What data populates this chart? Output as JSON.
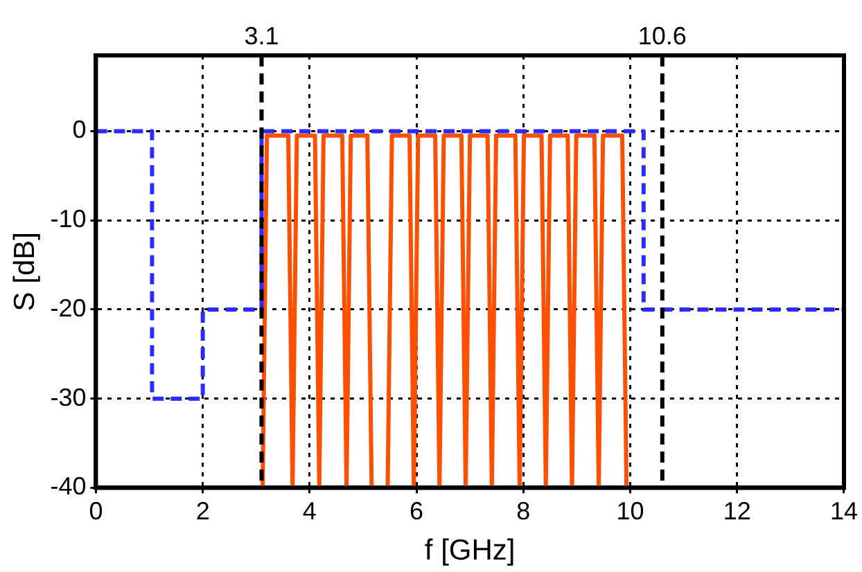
{
  "chart_data": {
    "type": "line",
    "xlabel": "f [GHz]",
    "ylabel": "S [dB]",
    "xlim": [
      0,
      14
    ],
    "xticks": [
      0,
      2,
      4,
      6,
      8,
      10,
      12,
      14
    ],
    "ylim": [
      -40,
      8.5
    ],
    "yticks": [
      -40,
      -30,
      -20,
      -10,
      0
    ],
    "grid": true,
    "legend": false,
    "marker": "none",
    "series": [
      {
        "type": "step",
        "color": "#2b2bff",
        "line_style": "dashed",
        "x": [
          0,
          1.05,
          2,
          3.1,
          10.25,
          14
        ],
        "values": [
          0,
          -30,
          -20,
          0,
          -20,
          -20
        ]
      },
      {
        "type": "line",
        "color": "#ff4f00",
        "line_style": "solid",
        "x": [
          3.12,
          3.2,
          3.6,
          3.68,
          3.76,
          4.1,
          4.18,
          4.26,
          4.61,
          4.69,
          4.77,
          5.08,
          5.16,
          5.46,
          5.54,
          5.87,
          5.95,
          6.03,
          6.35,
          6.43,
          6.51,
          6.84,
          6.92,
          7.0,
          7.33,
          7.41,
          7.49,
          7.85,
          7.93,
          8.01,
          8.34,
          8.42,
          8.5,
          8.83,
          8.91,
          8.99,
          9.33,
          9.41,
          9.49,
          9.85,
          9.93
        ],
        "values": [
          -40,
          -0.5,
          -0.5,
          -40,
          -0.5,
          -0.5,
          -40,
          -0.5,
          -0.5,
          -40,
          -0.5,
          -0.5,
          -40,
          -40,
          -0.5,
          -0.5,
          -40,
          -0.5,
          -0.5,
          -40,
          -0.5,
          -0.5,
          -40,
          -0.5,
          -0.5,
          -40,
          -0.5,
          -0.5,
          -40,
          -0.5,
          -0.5,
          -40,
          -0.5,
          -0.5,
          -40,
          -0.5,
          -0.5,
          -40,
          -0.5,
          -0.5,
          -40
        ]
      }
    ],
    "ref_lines": [
      {
        "axis": "x",
        "value": 3.1,
        "label": "3.1",
        "color": "#000000",
        "line_style": "dashed"
      },
      {
        "axis": "x",
        "value": 10.6,
        "label": "10.6",
        "color": "#000000",
        "line_style": "dashed"
      }
    ]
  }
}
